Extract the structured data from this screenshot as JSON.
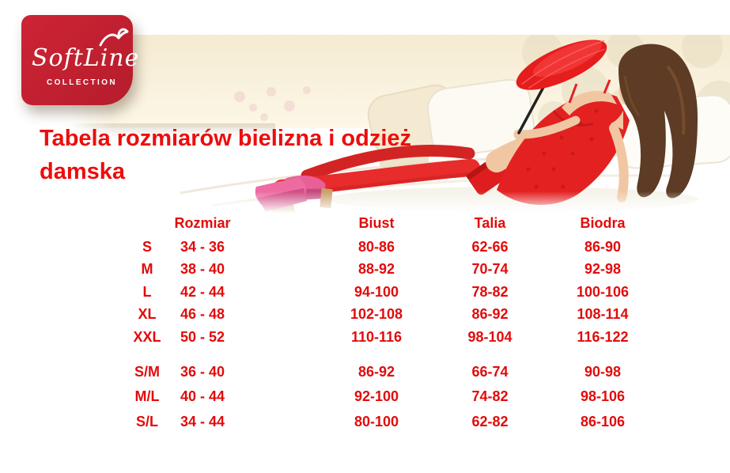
{
  "logo": {
    "brand": "SoftLine",
    "subtitle": "COLLECTION"
  },
  "title": "Tabela rozmiarów bielizna i odzież damska",
  "table": {
    "columns": [
      "Rozmiar",
      "Biust",
      "Talia",
      "Biodra"
    ],
    "groups": [
      [
        [
          "S",
          "34 - 36",
          "80-86",
          "62-66",
          "86-90"
        ],
        [
          "M",
          "38 - 40",
          "88-92",
          "70-74",
          "92-98"
        ],
        [
          "L",
          "42 - 44",
          "94-100",
          "78-82",
          "100-106"
        ],
        [
          "XL",
          "46 - 48",
          "102-108",
          "86-92",
          "108-114"
        ],
        [
          "XXL",
          "50 - 52",
          "110-116",
          "98-104",
          "116-122"
        ]
      ],
      [
        [
          "S/M",
          "36 - 40",
          "86-92",
          "66-74",
          "90-98"
        ],
        [
          "M/L",
          "40 - 44",
          "92-100",
          "74-82",
          "98-106"
        ],
        [
          "S/L",
          "34 - 44",
          "80-100",
          "62-82",
          "86-106"
        ]
      ]
    ]
  },
  "colors": {
    "title_red": "#ee0c0c",
    "table_red": "#e20b0b",
    "logo_red": "#c02030",
    "banner_cream": "#f6ecd3"
  }
}
